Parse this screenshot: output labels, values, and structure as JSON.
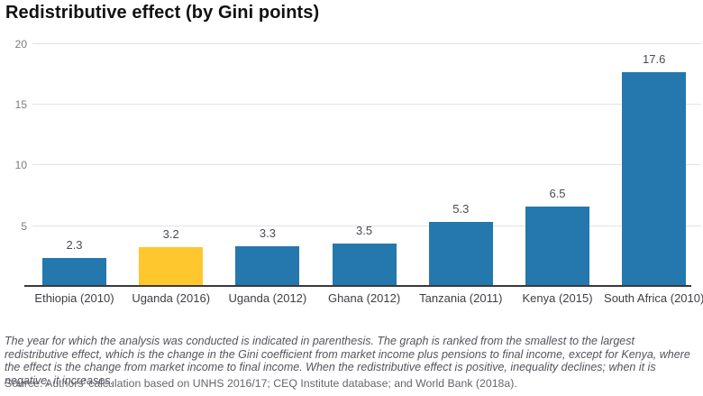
{
  "chart_data": {
    "type": "bar",
    "title": "Redistributive effect (by Gini points)",
    "categories": [
      "Ethiopia (2010)",
      "Uganda (2016)",
      "Uganda (2012)",
      "Ghana (2012)",
      "Tanzania (2011)",
      "Kenya (2015)",
      "South Africa (2010)"
    ],
    "values": [
      2.3,
      3.2,
      3.3,
      3.5,
      5.3,
      6.5,
      17.6
    ],
    "value_labels": [
      "2.3",
      "3.2",
      "3.3",
      "3.5",
      "5.3",
      "6.5",
      "17.6"
    ],
    "xlabel": "",
    "ylabel": "",
    "ylim": [
      0,
      20
    ],
    "yticks": [
      5,
      10,
      15,
      20
    ],
    "grid": true,
    "legend": "none",
    "bar_color": "#2478ae",
    "highlight_color": "#fec72d",
    "highlight_index": 1,
    "highlighted_category": "Uganda (2016)"
  },
  "notes": {
    "footnote": "The year for which the analysis was conducted is indicated in parenthesis. The graph is ranked from the smallest to the largest redistributive effect, which is the change in the Gini coefficient from market income plus pensions to final income, except for Kenya, where the effect is the change from market income to final income. When the redistributive effect is positive, inequality declines; when it is negative, it increases.",
    "source": "Source: Authors’ calculation based on UNHS 2016/17; CEQ Institute database; and World Bank (2018a)."
  }
}
